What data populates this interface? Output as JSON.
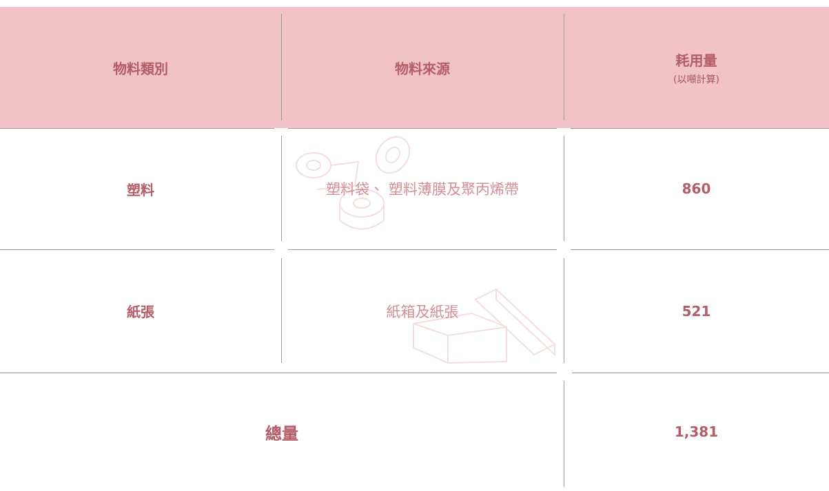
{
  "table": {
    "header": [
      "物料類別",
      "物料來源",
      "耗用量",
      "(以噸計算)"
    ],
    "rows": [
      [
        "塑料",
        "塑料袋、 塑料薄膜及聚丙烯帶",
        "860"
      ],
      [
        "紙張",
        "紙箱及紙張",
        "521"
      ]
    ],
    "total": [
      "總量",
      "1,381"
    ]
  }
}
